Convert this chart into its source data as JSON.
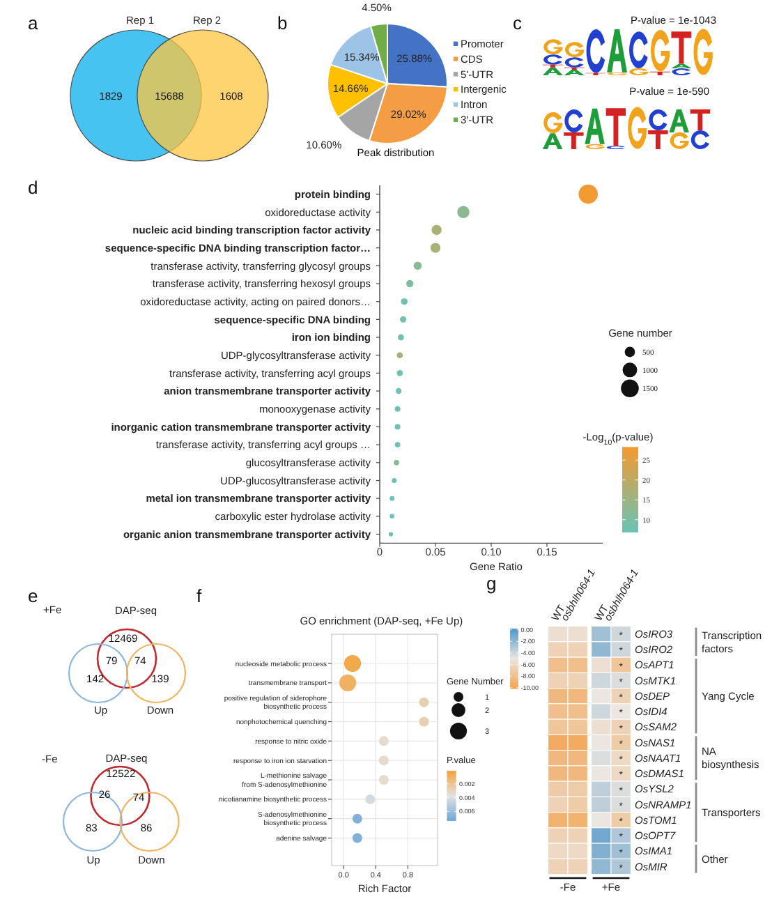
{
  "chart_data": [
    {
      "type": "other",
      "annotations": [
        "a",
        "1829",
        "15688",
        "1608"
      ],
      "series": [
        {
          "name": "Rep 1"
        },
        {
          "name": "Rep 2"
        }
      ]
    },
    {
      "type": "pie",
      "annotations": [
        "b",
        "Peak distribution"
      ],
      "categories": [
        "Promoter",
        "CDS",
        "5'-UTR",
        "Intergenic",
        "Intron",
        "3'-UTR"
      ],
      "values": [
        25.88,
        29.02,
        10.6,
        14.66,
        15.34,
        4.5
      ],
      "colors": [
        "#4472c4",
        "#f59d45",
        "#a5a5a5",
        "#ffc000",
        "#9dc3e6",
        "#70ad47"
      ],
      "value_labels": [
        "25.88%",
        "29.02%",
        "10.60%",
        "14.66%",
        "15.34%",
        "4.50%"
      ],
      "legend": "right"
    },
    {
      "type": "other",
      "annotations": [
        "c",
        "P-value = 1e-1043",
        "P-value = 1e-590"
      ]
    },
    {
      "type": "scatter",
      "annotations": [
        "d"
      ],
      "orientation": "horizontal",
      "categories": [
        "protein binding",
        "oxidoreductase activity",
        "nucleic acid binding transcription factor activity",
        "sequence-specific DNA binding transcription factor…",
        "transferase activity, transferring glycosyl groups",
        "transferase activity, transferring hexosyl groups",
        "oxidoreductase activity, acting on paired donors…",
        "sequence-specific DNA binding",
        "iron ion binding",
        "UDP-glycosyltransferase activity",
        "transferase activity, transferring acyl groups",
        "anion transmembrane transporter activity",
        "monooxygenase activity",
        "inorganic cation transmembrane transporter activity",
        "transferase activity, transferring acyl groups …",
        "glucosyltransferase activity",
        "UDP-glucosyltransferase activity",
        "metal ion transmembrane transporter activity",
        "carboxylic ester hydrolase activity",
        "organic anion transmembrane transporter activity"
      ],
      "values": [
        0.187,
        0.075,
        0.051,
        0.05,
        0.034,
        0.027,
        0.022,
        0.021,
        0.019,
        0.018,
        0.018,
        0.017,
        0.016,
        0.016,
        0.016,
        0.015,
        0.013,
        0.011,
        0.011,
        0.01
      ],
      "sizes": [
        1750,
        700,
        480,
        470,
        310,
        250,
        210,
        190,
        180,
        170,
        170,
        155,
        150,
        150,
        145,
        140,
        115,
        105,
        100,
        90
      ],
      "size_legend": [
        500,
        1000,
        1500
      ],
      "legend_title": "Gene number",
      "cvalues": [
        28,
        12.5,
        17,
        17,
        12,
        10,
        8.5,
        8,
        8,
        16,
        7.5,
        7.5,
        7.5,
        7.5,
        7.5,
        11.5,
        7.5,
        7,
        7,
        7
      ],
      "clim": [
        6.8,
        28.3
      ],
      "cticks": [
        10,
        15,
        20,
        25
      ],
      "clabel": "-Log$_{10}$(p-value)",
      "xlabel": "Gene Ratio",
      "xlim": [
        0,
        0.2
      ],
      "xticks": [
        0,
        0.05,
        {
          "value": 0.1,
          "label": "0.10"
        },
        0.15
      ]
    },
    {
      "type": "other",
      "title": "+Fe",
      "annotations": [
        "e",
        "12469",
        "79",
        "74",
        "142",
        "139"
      ],
      "series": [
        {
          "name": "DAP-seq"
        },
        {
          "name": "Up"
        },
        {
          "name": "Down"
        }
      ]
    },
    {
      "type": "other",
      "title": "-Fe",
      "annotations": [
        "12522",
        "26",
        "74",
        "83",
        "86"
      ],
      "series": [
        {
          "name": "DAP-seq"
        },
        {
          "name": "Up"
        },
        {
          "name": "Down"
        }
      ]
    },
    {
      "type": "scatter",
      "title": "GO enrichment (DAP-seq, +Fe Up)",
      "annotations": [
        "f"
      ],
      "orientation": "horizontal",
      "categories": [
        "nucleoside metabolic process",
        "transmembrane transport",
        "positive regulation of siderophore\nbiosynthetic process",
        "nonphotochemical quenching",
        "response to nitric oxide",
        "response to iron ion starvation",
        "L-methionine salvage\nfrom S-adenosylmethionine",
        "nicotianamine biosynthetic process",
        "S-adenosylmethionine\nbiosynthetic process",
        "adenine salvage"
      ],
      "values": [
        0.11,
        0.05,
        1,
        1,
        0.5,
        0.5,
        0.5,
        0.33,
        0.17,
        0.17
      ],
      "sizes": [
        3,
        3,
        1,
        1,
        1,
        1,
        1,
        1,
        1,
        1
      ],
      "size_legend": [
        1,
        2,
        3
      ],
      "legend_title": "Gene Number",
      "cvalues": [
        0.0005,
        0.001,
        0.0027,
        0.0027,
        0.0033,
        0.0033,
        0.0033,
        0.0042,
        0.0068,
        0.0068
      ],
      "clim": [
        0.0074,
        0.0001
      ],
      "cticks": [
        0.002,
        0.004,
        0.006
      ],
      "clabel": "P.value",
      "xlabel": "Rich Factor",
      "xlim": [
        -0.15,
        1.17
      ],
      "xticks": [
        {
          "value": 0,
          "label": "0.0"
        },
        0.4,
        0.8
      ],
      "grid": true
    },
    {
      "type": "heatmap",
      "annotations": [
        "g",
        "-Fe",
        "+Fe",
        "Transcription factors",
        "Yang Cycle",
        "NA biosynthesis",
        "Transporters",
        "Other"
      ],
      "categories": [
        "WT",
        "osbhlh064-1",
        "WT",
        "osbhlh064-1"
      ],
      "y_categories": [
        "OsIRO3",
        "OsIRO2",
        "OsAPT1",
        "OsMTK1",
        "OsDEP",
        "OsIDI4",
        "OsSAM2",
        "OsNAS1",
        "OsNAAT1",
        "OsDMAS1",
        "OsYSL2",
        "OsNRAMP1",
        "OsTOM1",
        "OsOPT7",
        "OsIMA1",
        "OsMIR"
      ],
      "cells": [
        [
          -5.5,
          -5.5,
          -2.5,
          -4
        ],
        [
          -6.5,
          -6.5,
          -2,
          -4
        ],
        [
          -8,
          -8,
          -5.5,
          -7.5
        ],
        [
          -6.5,
          -6.5,
          -4,
          -4.5
        ],
        [
          -8.5,
          -8.5,
          -5,
          -6.5
        ],
        [
          -8,
          -8,
          -4,
          -5
        ],
        [
          -7.5,
          -7.5,
          -5.5,
          -6.5
        ],
        [
          -9.5,
          -9.5,
          -5,
          -7
        ],
        [
          -8.5,
          -8.5,
          -4.5,
          -6
        ],
        [
          -8.5,
          -8.5,
          -5,
          -6
        ],
        [
          -7,
          -7,
          -3.5,
          -4.5
        ],
        [
          -6.5,
          -7,
          -3.5,
          -4.5
        ],
        [
          -9,
          -9,
          -5,
          -7
        ],
        [
          -6.5,
          -6.5,
          -1,
          -3
        ],
        [
          -6,
          -6,
          -1.5,
          -2.5
        ],
        [
          -6.5,
          -6.5,
          -2,
          -3
        ]
      ],
      "cell_labels": [
        [
          null,
          null,
          null,
          "*"
        ],
        [
          null,
          null,
          null,
          "*"
        ],
        [
          null,
          null,
          null,
          "*"
        ],
        [
          null,
          null,
          null,
          "*"
        ],
        [
          null,
          null,
          null,
          "*"
        ],
        [
          null,
          null,
          null,
          "*"
        ],
        [
          null,
          null,
          null,
          "*"
        ],
        [
          null,
          null,
          null,
          "*"
        ],
        [
          null,
          null,
          null,
          "*"
        ],
        [
          null,
          null,
          null,
          "*"
        ],
        [
          null,
          null,
          null,
          "*"
        ],
        [
          null,
          null,
          null,
          "*"
        ],
        [
          null,
          null,
          null,
          "*"
        ],
        [
          null,
          null,
          null,
          "*"
        ],
        [
          null,
          null,
          null,
          "*"
        ],
        [
          null,
          null,
          null,
          "*"
        ]
      ],
      "clim": [
        -10.2,
        0.2
      ],
      "cticks": [
        {
          "value": -10,
          "label": "-10.00"
        },
        {
          "value": -8,
          "label": "-8.00"
        },
        {
          "value": -6,
          "label": "-6.00"
        },
        {
          "value": -4,
          "label": "-4.00"
        },
        {
          "value": -2,
          "label": "-2.00"
        },
        {
          "value": 0,
          "label": "0.00"
        }
      ]
    }
  ]
}
